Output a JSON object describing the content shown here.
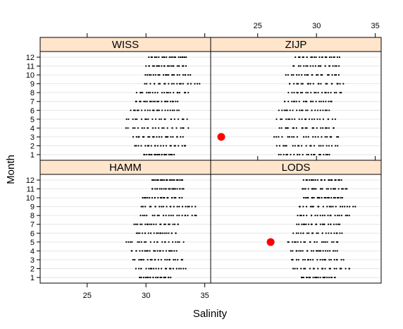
{
  "chart_data": {
    "type": "scatter",
    "xlabel": "Salinity",
    "ylabel": "Month",
    "xlim": [
      21,
      35.5
    ],
    "x_ticks": [
      25,
      30,
      35
    ],
    "y_ticks": [
      1,
      2,
      3,
      4,
      5,
      6,
      7,
      8,
      9,
      10,
      11,
      12
    ],
    "colors": {
      "strip": "#ffe5cc",
      "point": "#000000",
      "highlight": "#ff0000",
      "grid": "#e6e6e6"
    },
    "panels": [
      {
        "name": "WISS",
        "row": 0,
        "col": 0,
        "x_axis_side": "top",
        "ranges": [
          [
            29.8,
            32.4
          ],
          [
            29.0,
            33.4
          ],
          [
            28.9,
            33.2
          ],
          [
            28.3,
            33.6
          ],
          [
            28.3,
            33.5
          ],
          [
            28.7,
            32.8
          ],
          [
            29.1,
            32.7
          ],
          [
            29.2,
            33.6
          ],
          [
            29.9,
            34.6
          ],
          [
            29.9,
            33.8
          ],
          [
            30.0,
            33.4
          ],
          [
            30.2,
            33.5
          ]
        ],
        "highlight": null
      },
      {
        "name": "ZIJP",
        "row": 0,
        "col": 1,
        "x_axis_side": "top",
        "ranges": [
          [
            26.8,
            31.2
          ],
          [
            26.6,
            31.8
          ],
          [
            26.4,
            31.9
          ],
          [
            26.8,
            31.6
          ],
          [
            26.6,
            31.6
          ],
          [
            26.8,
            31.2
          ],
          [
            27.2,
            31.4
          ],
          [
            27.6,
            32.1
          ],
          [
            27.6,
            32.3
          ],
          [
            27.4,
            31.9
          ],
          [
            28.0,
            32.0
          ],
          [
            28.2,
            32.0
          ]
        ],
        "highlight": {
          "month": 3,
          "salinity": 21.9
        }
      },
      {
        "name": "HAMM",
        "row": 1,
        "col": 0,
        "x_axis_side": "bottom",
        "ranges": [
          [
            29.4,
            32.1
          ],
          [
            29.1,
            33.4
          ],
          [
            28.9,
            33.1
          ],
          [
            28.7,
            32.6
          ],
          [
            28.2,
            33.2
          ],
          [
            29.2,
            32.6
          ],
          [
            28.9,
            32.8
          ],
          [
            29.5,
            34.4
          ],
          [
            29.6,
            34.2
          ],
          [
            29.7,
            33.1
          ],
          [
            30.5,
            33.2
          ],
          [
            30.5,
            33.1
          ]
        ],
        "highlight": null
      },
      {
        "name": "LODS",
        "row": 1,
        "col": 1,
        "x_axis_side": "top",
        "ranges": [
          [
            28.7,
            31.6
          ],
          [
            28.0,
            32.9
          ],
          [
            27.9,
            32.3
          ],
          [
            27.8,
            31.8
          ],
          [
            27.5,
            31.8
          ],
          [
            28.0,
            32.2
          ],
          [
            28.3,
            32.0
          ],
          [
            28.4,
            32.8
          ],
          [
            28.5,
            33.3
          ],
          [
            28.9,
            32.2
          ],
          [
            28.8,
            32.6
          ],
          [
            28.9,
            32.2
          ]
        ],
        "highlight": {
          "month": 5,
          "salinity": 26.1
        }
      }
    ]
  }
}
